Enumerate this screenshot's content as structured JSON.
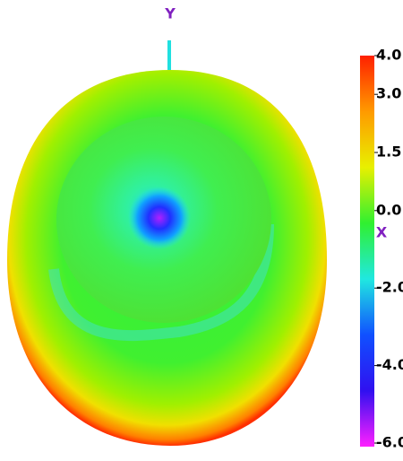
{
  "chart_data": {
    "type": "colormap",
    "x_label": "X",
    "y_label": "Y",
    "ylim": [
      -6,
      4
    ],
    "yticks": [
      {
        "value": 4,
        "label": "4.0"
      },
      {
        "value": 3,
        "label": "3.0"
      },
      {
        "value": 1.5,
        "label": "1.5"
      },
      {
        "value": 0,
        "label": "0.0"
      },
      {
        "value": -2,
        "label": "-2.0"
      },
      {
        "value": -4,
        "label": "-4.0"
      },
      {
        "value": -6,
        "label": "-6.0"
      }
    ],
    "colors": [
      "#ff2000",
      "#ff9a00",
      "#e8f000",
      "#30f030",
      "#20e8e0",
      "#1050ff",
      "#3010f0",
      "#ff20ff"
    ]
  }
}
